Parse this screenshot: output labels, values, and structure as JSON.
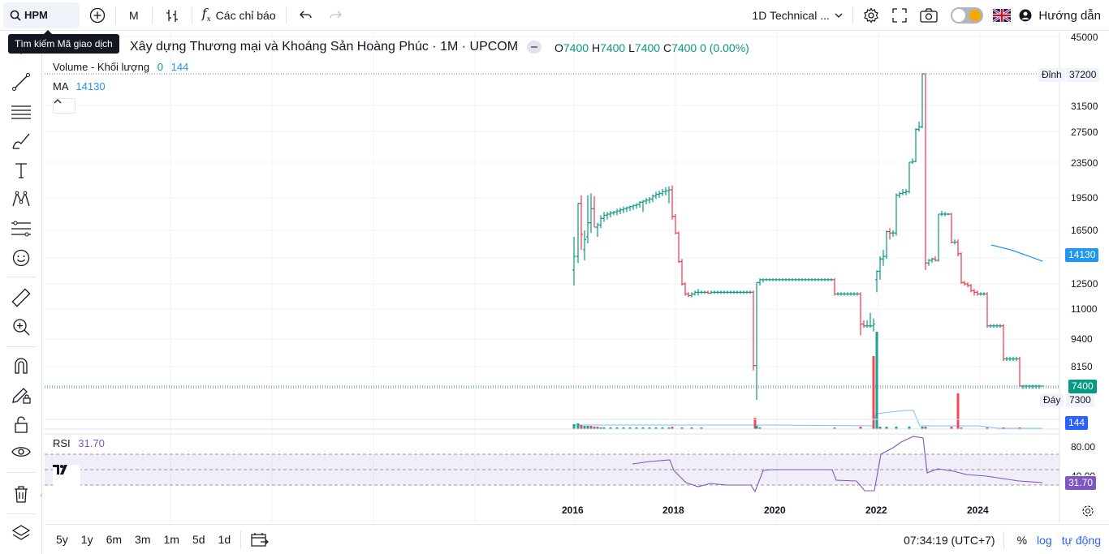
{
  "toolbar": {
    "symbol": "HPM",
    "interval": "M",
    "indicators_label": "Các chỉ báo",
    "layout_label": "1D Technical ...",
    "guide_label": "Hướng dẫn"
  },
  "tooltip": {
    "text": "Tìm kiếm Mã giao dịch"
  },
  "legend": {
    "title": "Xây dựng Thương mại và Khoáng Sản Hoàng Phúc · 1M · UPCOM",
    "o_label": "O",
    "o_value": "7400",
    "h_label": "H",
    "h_value": "7400",
    "l_label": "L",
    "l_value": "7400",
    "c_label": "C",
    "c_value": "7400",
    "change": "0 (0.00%)",
    "volume_label": "Volume - Khối lượng",
    "volume_v1": "0",
    "volume_v2": "144",
    "ma_label": "MA",
    "ma_value": "14130"
  },
  "rsi": {
    "label": "RSI",
    "value": "31.70"
  },
  "price_axis": {
    "ticks": [
      "45000",
      "31500",
      "27500",
      "23500",
      "19500",
      "16500",
      "12500",
      "11000",
      "9400",
      "8150",
      "7300"
    ],
    "high_label": "Đỉnh",
    "high_value": "37200",
    "low_label": "Đáy",
    "last_price": "7400",
    "ma_tag": "14130",
    "volume_tag": "144"
  },
  "rsi_axis": {
    "ticks": [
      "80.00",
      "40.00"
    ],
    "tag": "31.70"
  },
  "time_axis": {
    "labels": [
      "2016",
      "2018",
      "2020",
      "2022",
      "2024"
    ]
  },
  "bottom": {
    "ranges": [
      "5y",
      "1y",
      "6m",
      "3m",
      "1m",
      "5d",
      "1d"
    ],
    "clock": "07:34:19 (UTC+7)",
    "percent": "%",
    "log": "log",
    "auto": "tự động"
  },
  "colors": {
    "up": "#089981",
    "down": "#f23645",
    "ma": "#2196f3",
    "rsi": "#7e57c2",
    "accent": "#2962ff"
  },
  "chart_data": {
    "type": "ohlc",
    "title": "Xây dựng Thương mại và Khoáng Sản Hoàng Phúc · 1M · UPCOM",
    "x_labels": [
      "2016",
      "2018",
      "2020",
      "2022",
      "2024"
    ],
    "ohlc_monthly_close_sample": [
      {
        "date": "2016-01",
        "close": 14500
      },
      {
        "date": "2016-06",
        "close": 19000
      },
      {
        "date": "2017-06",
        "close": 19500
      },
      {
        "date": "2017-12",
        "close": 20500
      },
      {
        "date": "2018-06",
        "close": 11800
      },
      {
        "date": "2019-06",
        "close": 12000
      },
      {
        "date": "2019-09",
        "close": 7300
      },
      {
        "date": "2019-10",
        "close": 12900
      },
      {
        "date": "2021-06",
        "close": 11800
      },
      {
        "date": "2021-12",
        "close": 10200
      },
      {
        "date": "2022-06",
        "close": 23500
      },
      {
        "date": "2022-10",
        "close": 37200
      },
      {
        "date": "2022-12",
        "close": 14000
      },
      {
        "date": "2023-03",
        "close": 18000
      },
      {
        "date": "2023-06",
        "close": 14500
      },
      {
        "date": "2023-09",
        "close": 12500
      },
      {
        "date": "2024-01",
        "close": 10000
      },
      {
        "date": "2024-06",
        "close": 8400
      },
      {
        "date": "2025-01",
        "close": 7400
      }
    ],
    "high": 37200,
    "low": 7300,
    "last": 7400,
    "ma": 14130,
    "volume_last": 144,
    "rsi_last": 31.7,
    "rsi_bands": [
      80,
      40
    ]
  }
}
